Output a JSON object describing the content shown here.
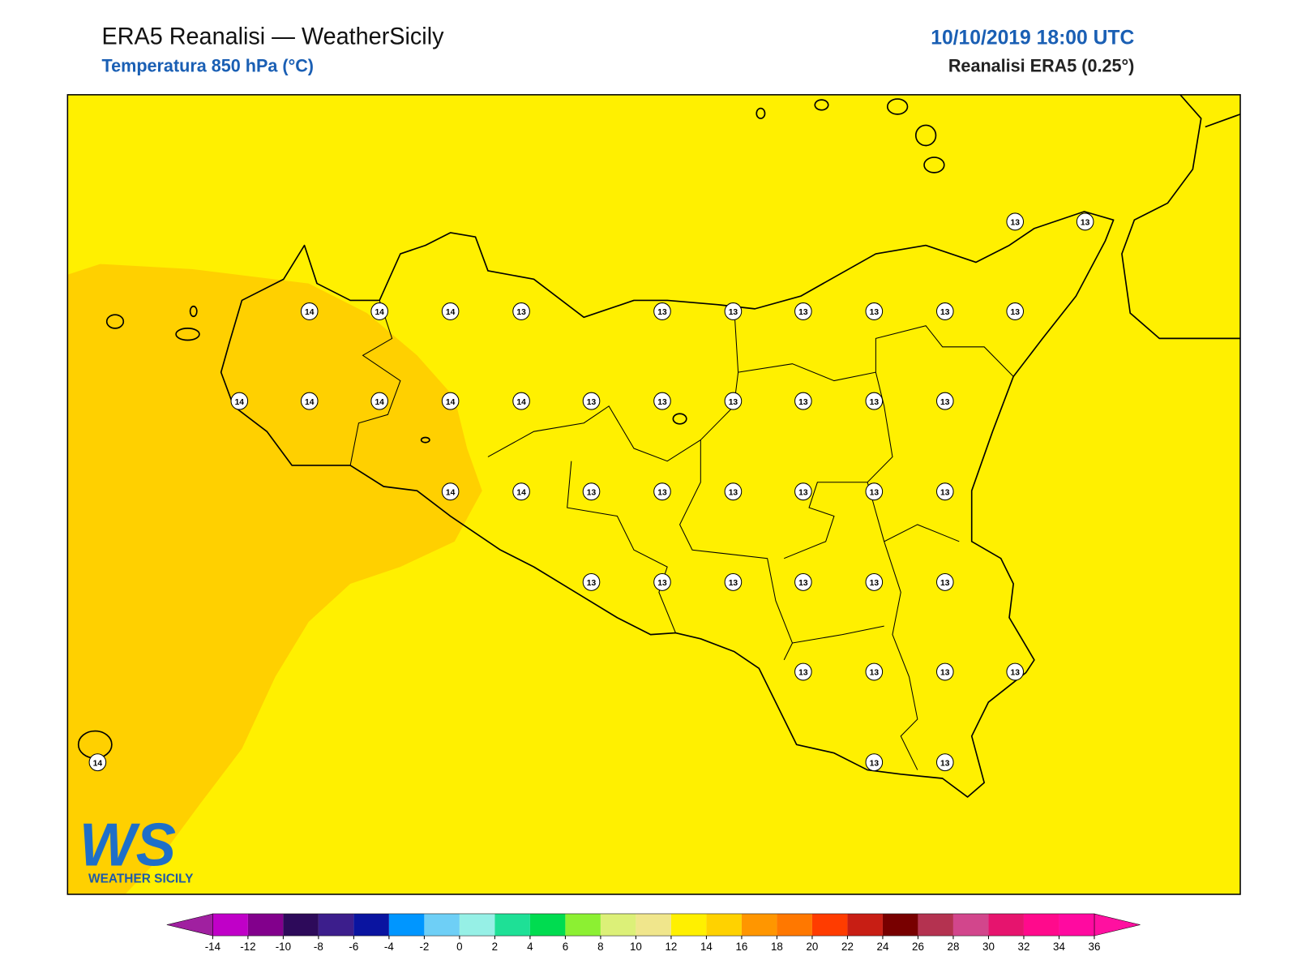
{
  "header": {
    "title": "ERA5 Reanalisi — WeatherSicily",
    "subtitle": "Temperatura 850 hPa (°C)",
    "date": "10/10/2019 18:00 UTC",
    "source": "Reanalisi ERA5 (0.25°)"
  },
  "map": {
    "field_colors": {
      "base": "#fff000",
      "warm": "#ffd000"
    },
    "station_values": [
      13,
      13,
      14,
      14,
      14,
      13,
      13,
      13,
      13,
      13,
      13,
      13,
      14,
      14,
      14,
      14,
      14,
      13,
      13,
      13,
      13,
      13,
      13,
      14,
      14,
      13,
      13,
      13,
      13,
      13,
      13,
      13,
      13,
      13,
      13,
      13,
      13,
      13,
      13,
      13,
      13,
      14,
      13,
      13
    ]
  },
  "logo": {
    "mark": "WS",
    "text": "WEATHER SICILY"
  },
  "colorbar": {
    "ticks": [
      -14,
      -12,
      -10,
      -8,
      -6,
      -4,
      -2,
      0,
      2,
      4,
      6,
      8,
      10,
      12,
      14,
      16,
      18,
      20,
      22,
      24,
      26,
      28,
      30,
      32,
      34,
      36
    ],
    "under": "#a020a0",
    "over": "#ff10a0",
    "colors": [
      "#c000c8",
      "#82008c",
      "#2d0a5a",
      "#3c1e8c",
      "#0a14a0",
      "#0096ff",
      "#6ecff6",
      "#96f0e6",
      "#1ee096",
      "#00dc50",
      "#8cf032",
      "#dcf078",
      "#f0e68c",
      "#fff000",
      "#ffd200",
      "#ff9600",
      "#ff7800",
      "#ff3c00",
      "#c81e14",
      "#780000",
      "#b43250",
      "#d2468c",
      "#e6146e",
      "#ff0a8c",
      "#ff0aa0"
    ]
  }
}
